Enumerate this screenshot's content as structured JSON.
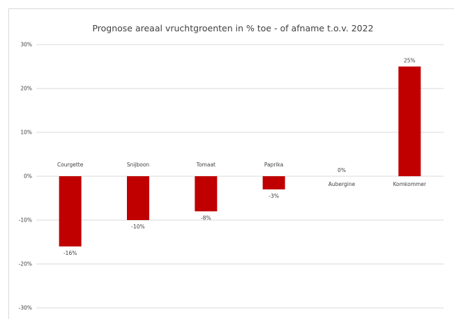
{
  "chart_data": {
    "type": "bar",
    "title": "Prognose areaal vruchtgroenten in % toe - of afname t.o.v. 2022",
    "categories": [
      "Courgette",
      "Snijboon",
      "Tomaat",
      "Paprika",
      "Aubergine",
      "Komkommer"
    ],
    "values": [
      -16,
      -10,
      -8,
      -3,
      0,
      25
    ],
    "data_labels": [
      "-16%",
      "-10%",
      "-8%",
      "-3%",
      "0%",
      "25%"
    ],
    "ylim": [
      -30,
      30
    ],
    "yticks": [
      30,
      20,
      10,
      0,
      -10,
      -20,
      -30
    ],
    "ytick_labels": [
      "30%",
      "20%",
      "10%",
      "0%",
      "-10%",
      "-20%",
      "-30%"
    ],
    "xlabel": "",
    "ylabel": "",
    "grid": true,
    "legend": "none",
    "colors": {
      "bar": "#c00000",
      "grid": "#d9d9d9",
      "text": "#404040"
    }
  }
}
